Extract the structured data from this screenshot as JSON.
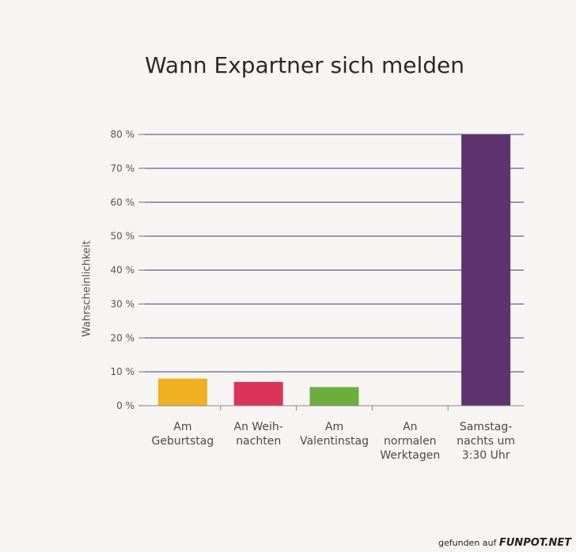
{
  "chart_data": {
    "type": "bar",
    "title": "Wann Expartner sich melden",
    "xlabel": "",
    "ylabel": "Wahrscheinlichkeit",
    "ylim": [
      0,
      80
    ],
    "y_ticks": [
      "0 %",
      "10 %",
      "20 %",
      "30 %",
      "40 %",
      "50 %",
      "60 %",
      "70 %",
      "80 %"
    ],
    "categories": [
      "Am\nGeburtstag",
      "An Weih-\nnachten",
      "Am\nValentinstag",
      "An\nnormalen\nWerktagen",
      "Samstag-\nnachts um\n3:30 Uhr"
    ],
    "values": [
      8,
      7,
      5.5,
      0,
      80
    ],
    "colors": [
      "#f0b020",
      "#dc3358",
      "#6cae3e",
      "#999999",
      "#5e3370"
    ],
    "grid": true
  },
  "footer": {
    "prefix": "gefunden auf",
    "brand": "FUNPOT.NET"
  }
}
